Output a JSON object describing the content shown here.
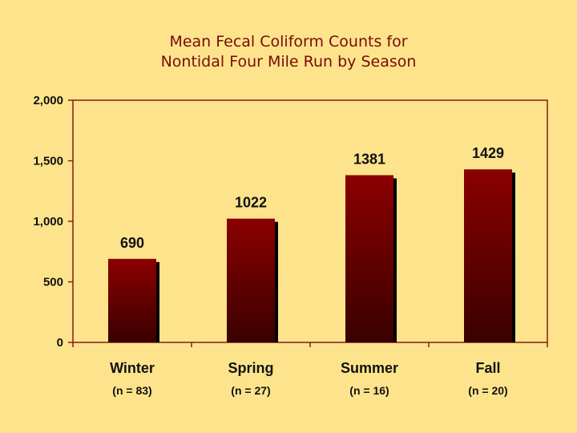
{
  "chart_data": {
    "type": "bar",
    "title": [
      "Mean Fecal Coliform Counts for",
      "Nontidal Four Mile Run by Season"
    ],
    "categories": [
      "Winter",
      "Spring",
      "Summer",
      "Fall"
    ],
    "category_notes": [
      "(n = 83)",
      "(n = 27)",
      "(n = 16)",
      "(n = 20)"
    ],
    "values": [
      690,
      1022,
      1381,
      1429
    ],
    "data_labels": [
      "690",
      "1022",
      "1381",
      "1429"
    ],
    "ylim": [
      0,
      2000
    ],
    "yticks": [
      0,
      500,
      1000,
      1500,
      2000
    ],
    "ytick_labels": [
      "0",
      "500",
      "1,000",
      "1,500",
      "2,000"
    ],
    "xlabel": "",
    "ylabel": "",
    "grid": false,
    "legend": "none",
    "colors": {
      "bar_top": "#8b0000",
      "bar_bottom": "#3a0000",
      "axis": "#8b1a1a",
      "plot_background": "#fde48c",
      "title": "#7a0a0a"
    }
  }
}
